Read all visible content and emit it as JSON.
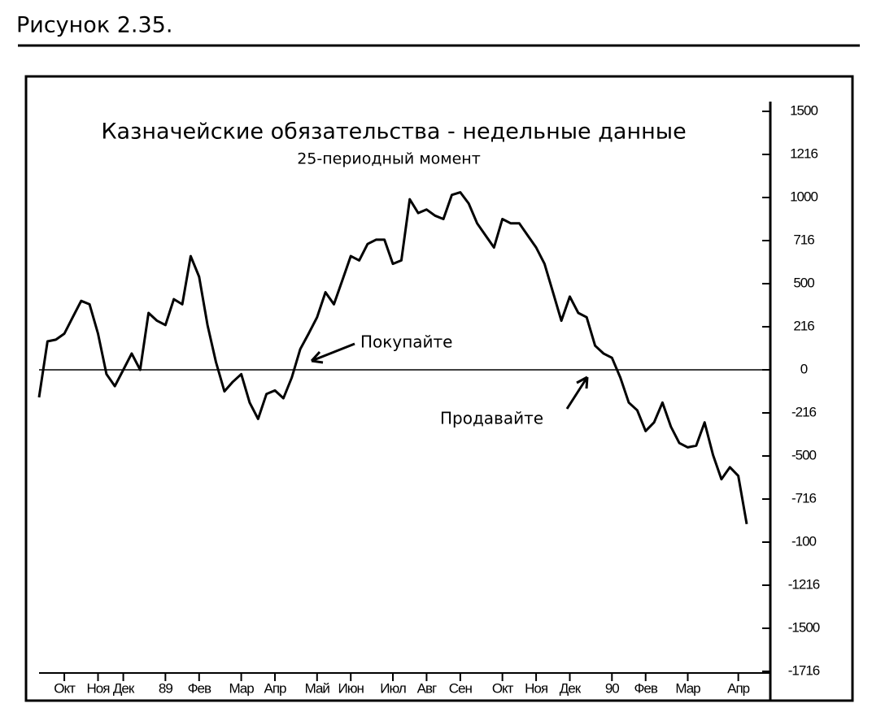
{
  "caption": "Рисунок 2.35.",
  "chart_data": {
    "type": "line",
    "title": "Казначейские обязательства - недельные данные",
    "subtitle": "25-периодный момент",
    "annotations": [
      "Покупайте",
      "Продавайте"
    ],
    "color": "#000000",
    "categories": [
      null,
      null,
      null,
      "Окт",
      null,
      null,
      null,
      "Ноя",
      null,
      null,
      "Дек",
      null,
      null,
      null,
      null,
      "89",
      null,
      null,
      null,
      "Фев",
      null,
      null,
      null,
      null,
      "Мар",
      null,
      null,
      null,
      "Апр",
      null,
      null,
      null,
      null,
      "Май",
      null,
      null,
      null,
      "Июн",
      null,
      null,
      null,
      null,
      "Июл",
      null,
      null,
      null,
      "Авг",
      null,
      null,
      null,
      "Сен",
      null,
      null,
      null,
      null,
      "Окт",
      null,
      null,
      null,
      "Ноя",
      null,
      null,
      null,
      "Дек",
      null,
      null,
      null,
      null,
      "90",
      null,
      null,
      null,
      "Фев",
      null,
      null,
      null,
      null,
      "Мар",
      null,
      null,
      null,
      null,
      null,
      "Апр",
      null
    ],
    "values": [
      -160,
      165,
      175,
      210,
      305,
      400,
      380,
      210,
      -25,
      -95,
      0,
      95,
      0,
      330,
      285,
      260,
      410,
      380,
      660,
      540,
      260,
      45,
      -125,
      -70,
      -25,
      -190,
      -285,
      -140,
      -120,
      -165,
      -45,
      120,
      210,
      305,
      450,
      380,
      520,
      660,
      635,
      730,
      755,
      755,
      615,
      635,
      990,
      910,
      930,
      895,
      875,
      1015,
      1030,
      965,
      850,
      780,
      710,
      875,
      850,
      850,
      780,
      710,
      615,
      450,
      285,
      425,
      330,
      305,
      140,
      95,
      70,
      -45,
      -190,
      -235,
      -355,
      -305,
      -190,
      -330,
      -425,
      -450,
      -440,
      -305,
      -495,
      -635,
      -565,
      -615,
      -895
    ],
    "ylim": [
      -1750,
      1500
    ],
    "yticks": [
      1500,
      {
        "value": 1250,
        "label": "1216"
      },
      1000,
      {
        "value": 750,
        "label": "716"
      },
      500,
      {
        "value": 250,
        "label": "216"
      },
      0,
      {
        "value": -250,
        "label": "-216"
      },
      {
        "value": -500,
        "label": "-500"
      },
      {
        "value": -750,
        "label": "-716"
      },
      {
        "value": -1000,
        "label": "-100"
      },
      {
        "value": -1250,
        "label": "-1216"
      },
      -1500,
      {
        "value": -1750,
        "label": "-1716"
      }
    ],
    "zero_line": true
  }
}
